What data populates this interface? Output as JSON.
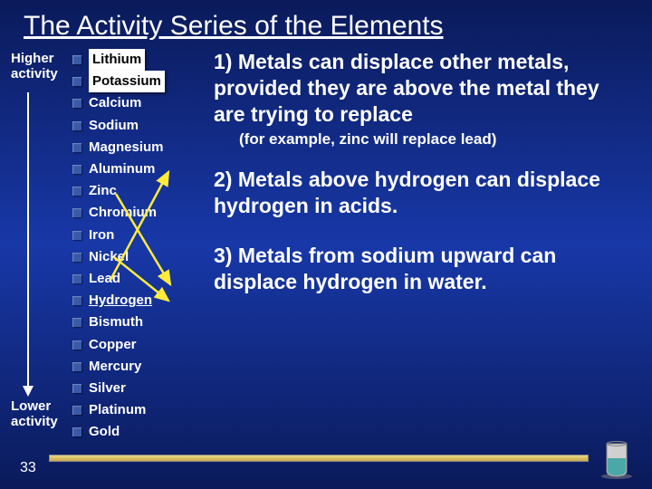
{
  "title": "The Activity Series of the Elements",
  "labels": {
    "higher": "Higher activity",
    "lower": "Lower activity"
  },
  "elements": [
    {
      "name": "Lithium",
      "boxed": true
    },
    {
      "name": "Potassium",
      "boxed": true
    },
    {
      "name": "Calcium",
      "boxed": false
    },
    {
      "name": "Sodium",
      "boxed": false
    },
    {
      "name": "Magnesium",
      "boxed": false
    },
    {
      "name": "Aluminum",
      "boxed": false
    },
    {
      "name": "Zinc",
      "boxed": false
    },
    {
      "name": "Chromium",
      "boxed": false
    },
    {
      "name": "Iron",
      "boxed": false
    },
    {
      "name": "Nickel",
      "boxed": false
    },
    {
      "name": "Lead",
      "boxed": false
    },
    {
      "name": "Hydrogen",
      "boxed": false,
      "underline": true
    },
    {
      "name": "Bismuth",
      "boxed": false
    },
    {
      "name": "Copper",
      "boxed": false
    },
    {
      "name": "Mercury",
      "boxed": false
    },
    {
      "name": "Silver",
      "boxed": false
    },
    {
      "name": "Platinum",
      "boxed": false
    },
    {
      "name": "Gold",
      "boxed": false
    }
  ],
  "rules": {
    "r1": "1) Metals can displace other metals, provided they are above the metal they are trying to replace",
    "r1_sub": "(for example, zinc will replace lead)",
    "r2": "2) Metals above hydrogen can displace hydrogen in acids.",
    "r3": "3) Metals from sodium upward can displace hydrogen in water."
  },
  "page_num": "33",
  "colors": {
    "arrow_yellow": "#ffeb3b",
    "beaker_liquid": "#4aa8a8",
    "beaker_glass": "#d0d0d0"
  }
}
